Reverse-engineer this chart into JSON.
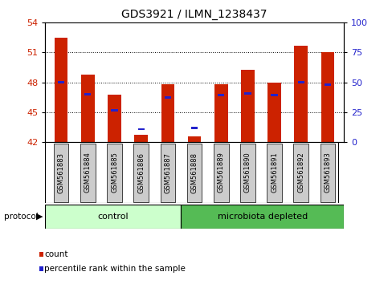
{
  "title": "GDS3921 / ILMN_1238437",
  "samples": [
    "GSM561883",
    "GSM561884",
    "GSM561885",
    "GSM561886",
    "GSM561887",
    "GSM561888",
    "GSM561889",
    "GSM561890",
    "GSM561891",
    "GSM561892",
    "GSM561893"
  ],
  "red_values": [
    52.5,
    48.8,
    46.8,
    42.7,
    47.8,
    42.6,
    47.8,
    49.3,
    48.0,
    51.7,
    51.0
  ],
  "blue_values": [
    48.0,
    46.8,
    45.2,
    43.3,
    46.5,
    43.4,
    46.7,
    46.9,
    46.7,
    48.0,
    47.8
  ],
  "ymin": 42,
  "ymax": 54,
  "yticks": [
    42,
    45,
    48,
    51,
    54
  ],
  "y2min": 0,
  "y2max": 100,
  "y2ticks": [
    0,
    25,
    50,
    75,
    100
  ],
  "baseline": 42,
  "control_label": "control",
  "treated_label": "microbiota depleted",
  "protocol_label": "protocol",
  "legend_red": "count",
  "legend_blue": "percentile rank within the sample",
  "control_count": 5,
  "treated_count": 6,
  "bar_color_red": "#cc2200",
  "bar_color_blue": "#2222cc",
  "control_bg": "#ccffcc",
  "treated_bg": "#55bb55",
  "tick_label_bg": "#cccccc",
  "title_fontsize": 10,
  "tick_fontsize": 8,
  "bar_width": 0.5
}
